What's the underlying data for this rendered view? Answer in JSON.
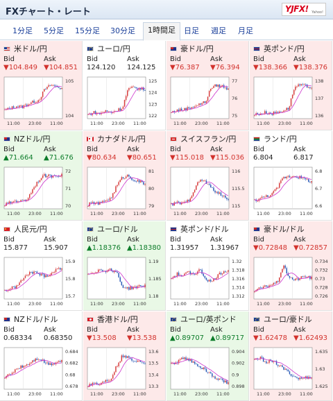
{
  "header": {
    "title": "FXチャート・レート",
    "logo_text": "YJFX!",
    "logo_sub": "Yahoo!"
  },
  "tabs": [
    {
      "label": "1分足"
    },
    {
      "label": "5分足"
    },
    {
      "label": "15分足"
    },
    {
      "label": "30分足"
    },
    {
      "label": "1時間足",
      "active": true
    },
    {
      "label": "日足"
    },
    {
      "label": "週足"
    },
    {
      "label": "月足"
    }
  ],
  "common": {
    "bid_label": "Bid",
    "ask_label": "Ask",
    "x_ticks": [
      "11:00",
      "23:00",
      "11:00"
    ]
  },
  "colors": {
    "up_bg": "#e9f8e6",
    "down_bg": "#fde9e9",
    "up_text": "#0d7c2a",
    "down_text": "#d2322d",
    "candle_up": "#d63b3b",
    "candle_down": "#2a5ab7",
    "ma_line": "#cc33cc"
  },
  "pairs": [
    {
      "name": "米ドル/円",
      "flag": "us-flag-icon",
      "fc": "us",
      "state": "down",
      "bid": "▼104.849",
      "ask": "▼104.851",
      "ticks": [
        "105",
        "104"
      ],
      "trend": [
        0.2,
        0.25,
        0.3,
        0.28,
        0.35,
        0.4,
        0.45,
        0.7,
        0.8,
        0.78,
        0.72
      ]
    },
    {
      "name": "ユーロ/円",
      "flag": "eu-flag-icon",
      "fc": "eu",
      "state": "flat",
      "bid": "124.120",
      "ask": "124.125",
      "ticks": [
        "125",
        "124",
        "123",
        "122"
      ],
      "trend": [
        0.1,
        0.15,
        0.12,
        0.18,
        0.15,
        0.2,
        0.25,
        0.7,
        0.75,
        0.72,
        0.7
      ]
    },
    {
      "name": "豪ドル/円",
      "flag": "au-flag-icon",
      "fc": "au",
      "state": "down",
      "bid": "▼76.387",
      "ask": "▼76.394",
      "ticks": [
        "77",
        "76",
        "75"
      ],
      "trend": [
        0.15,
        0.2,
        0.22,
        0.25,
        0.3,
        0.35,
        0.4,
        0.75,
        0.8,
        0.78,
        0.7
      ]
    },
    {
      "name": "英ポンド/円",
      "flag": "gb-flag-icon",
      "fc": "gb",
      "state": "down",
      "bid": "▼138.366",
      "ask": "▼138.376",
      "ticks": [
        "138",
        "137",
        "136"
      ],
      "trend": [
        0.1,
        0.12,
        0.15,
        0.12,
        0.15,
        0.2,
        0.25,
        0.75,
        0.8,
        0.78,
        0.75
      ]
    },
    {
      "name": "NZドル/円",
      "flag": "nz-flag-icon",
      "fc": "nz",
      "state": "up",
      "bid": "▲71.664",
      "ask": "▲71.676",
      "ticks": [
        "72",
        "71",
        "70"
      ],
      "trend": [
        0.1,
        0.15,
        0.2,
        0.18,
        0.25,
        0.5,
        0.7,
        0.8,
        0.78,
        0.82,
        0.8
      ]
    },
    {
      "name": "カナダドル/円",
      "flag": "ca-flag-icon",
      "fc": "ca",
      "state": "down",
      "bid": "▼80.634",
      "ask": "▼80.651",
      "ticks": [
        "81",
        "80",
        "79"
      ],
      "trend": [
        0.1,
        0.15,
        0.12,
        0.2,
        0.25,
        0.55,
        0.75,
        0.8,
        0.7,
        0.65,
        0.6
      ]
    },
    {
      "name": "スイスフラン/円",
      "flag": "ch-flag-icon",
      "fc": "ch",
      "state": "down",
      "bid": "▼115.018",
      "ask": "▼115.036",
      "ticks": [
        "116",
        "115.5",
        "115"
      ],
      "trend": [
        0.1,
        0.15,
        0.12,
        0.2,
        0.45,
        0.7,
        0.65,
        0.5,
        0.4,
        0.3,
        0.25
      ]
    },
    {
      "name": "ランド/円",
      "flag": "za-flag-icon",
      "fc": "za",
      "state": "flat",
      "bid": "6.804",
      "ask": "6.817",
      "ticks": [
        "6.8",
        "6.7",
        "6.6"
      ],
      "trend": [
        0.2,
        0.25,
        0.3,
        0.35,
        0.5,
        0.75,
        0.78,
        0.8,
        0.75,
        0.7,
        0.65
      ]
    },
    {
      "name": "人民元/円",
      "flag": "cn-flag-icon",
      "fc": "cn",
      "state": "flat",
      "bid": "15.877",
      "ask": "15.907",
      "ticks": [
        "15.9",
        "15.8",
        "15.7"
      ],
      "trend": [
        0.2,
        0.25,
        0.3,
        0.45,
        0.6,
        0.65,
        0.6,
        0.55,
        0.6,
        0.7,
        0.75
      ]
    },
    {
      "name": "ユーロ/ドル",
      "flag": "eu-flag-icon",
      "fc": "eu",
      "state": "up",
      "bid": "▲1.18376",
      "ask": "▲1.18380",
      "ticks": [
        "1.19",
        "1.185",
        "1.18"
      ],
      "trend": [
        0.6,
        0.65,
        0.7,
        0.68,
        0.7,
        0.65,
        0.3,
        0.25,
        0.28,
        0.3,
        0.32
      ]
    },
    {
      "name": "英ポンド/ドル",
      "flag": "gb-flag-icon",
      "fc": "gb",
      "state": "flat",
      "bid": "1.31957",
      "ask": "1.31967",
      "ticks": [
        "1.32",
        "1.318",
        "1.316",
        "1.314",
        "1.312"
      ],
      "trend": [
        0.5,
        0.6,
        0.55,
        0.65,
        0.6,
        0.7,
        0.5,
        0.4,
        0.55,
        0.65,
        0.7
      ]
    },
    {
      "name": "豪ドル/ドル",
      "flag": "au-flag-icon",
      "fc": "au",
      "state": "down",
      "bid": "▼0.72848",
      "ask": "▼0.72857",
      "ticks": [
        "0.734",
        "0.732",
        "0.73",
        "0.728",
        "0.726"
      ],
      "trend": [
        0.2,
        0.25,
        0.3,
        0.35,
        0.4,
        0.8,
        0.55,
        0.45,
        0.5,
        0.55,
        0.5
      ]
    },
    {
      "name": "NZドル/ドル",
      "flag": "nz-flag-icon",
      "fc": "nz",
      "state": "flat",
      "bid": "0.68334",
      "ask": "0.68350",
      "ticks": [
        "0.684",
        "0.682",
        "0.68",
        "0.678"
      ],
      "trend": [
        0.3,
        0.35,
        0.5,
        0.55,
        0.6,
        0.7,
        0.75,
        0.65,
        0.6,
        0.65,
        0.7
      ]
    },
    {
      "name": "香港ドル/円",
      "flag": "hk-flag-icon",
      "fc": "hk",
      "state": "down",
      "bid": "▼13.508",
      "ask": "▼13.538",
      "ticks": [
        "13.6",
        "13.5",
        "13.4",
        "13.3"
      ],
      "trend": [
        0.1,
        0.15,
        0.12,
        0.2,
        0.25,
        0.55,
        0.8,
        0.75,
        0.7,
        0.68,
        0.65
      ]
    },
    {
      "name": "ユーロ/英ポンド",
      "flag": "eu-flag-icon",
      "fc": "eu",
      "state": "up",
      "bid": "▲0.89707",
      "ask": "▲0.89717",
      "ticks": [
        "0.904",
        "0.902",
        "0.9",
        "0.898"
      ],
      "trend": [
        0.6,
        0.65,
        0.75,
        0.7,
        0.65,
        0.55,
        0.45,
        0.35,
        0.25,
        0.2,
        0.15
      ]
    },
    {
      "name": "ユーロ/豪ドル",
      "flag": "eu-flag-icon",
      "fc": "eu",
      "state": "down",
      "bid": "▼1.62478",
      "ask": "▼1.62493",
      "ticks": [
        "1.635",
        "1.63",
        "1.625"
      ],
      "trend": [
        0.7,
        0.75,
        0.65,
        0.7,
        0.6,
        0.5,
        0.4,
        0.3,
        0.25,
        0.28,
        0.3
      ]
    }
  ]
}
